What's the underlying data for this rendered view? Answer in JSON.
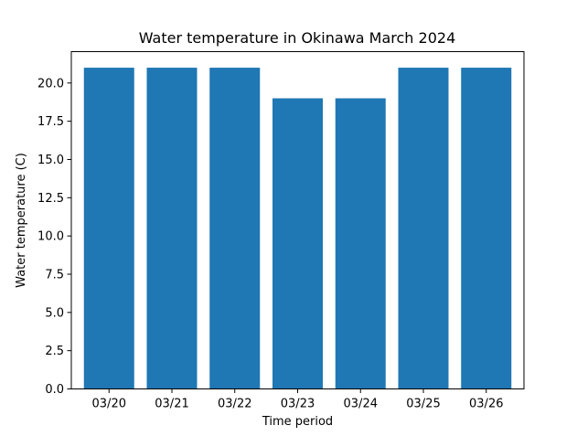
{
  "chart_data": {
    "type": "bar",
    "title": "Water temperature in Okinawa March 2024",
    "xlabel": "Time period",
    "ylabel": "Water temperature (C)",
    "categories": [
      "03/20",
      "03/21",
      "03/22",
      "03/23",
      "03/24",
      "03/25",
      "03/26"
    ],
    "values": [
      21,
      21,
      21,
      19,
      19,
      21,
      21
    ],
    "ylim": [
      0,
      22.05
    ],
    "yticks": [
      "0.0",
      "2.5",
      "5.0",
      "7.5",
      "10.0",
      "12.5",
      "15.0",
      "17.5",
      "20.0"
    ],
    "bar_color": "#1f77b4",
    "grid": false,
    "legend": false
  }
}
